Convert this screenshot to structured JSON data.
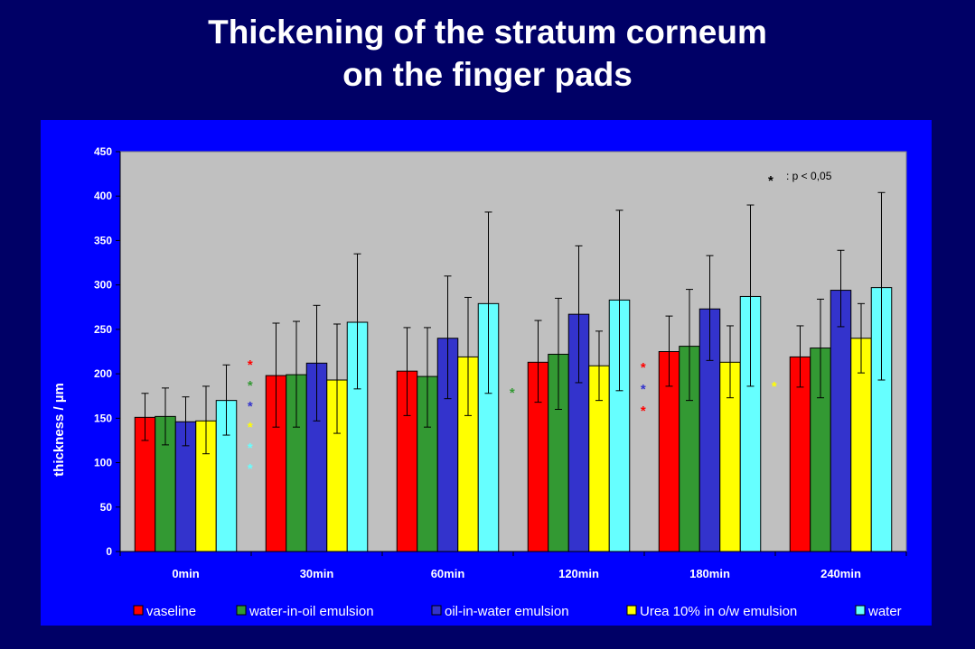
{
  "title": {
    "line1": "Thickening of the stratum corneum",
    "line2": "on the finger pads"
  },
  "colors": {
    "background": "#000066",
    "panel": "#0000ff",
    "plot_area": "#c0c0c0",
    "vaseline": "#ff0000",
    "water_in_oil": "#339933",
    "oil_in_water": "#3333cc",
    "urea": "#ffff00",
    "water": "#66ffff"
  },
  "chart_data": {
    "type": "bar",
    "ylabel": "thickness / µm",
    "xlabel": "",
    "ylim": [
      0,
      450
    ],
    "yticks": [
      0,
      50,
      100,
      150,
      200,
      250,
      300,
      350,
      400,
      450
    ],
    "grid": false,
    "legend_position": "bottom",
    "categories": [
      "0min",
      "30min",
      "60min",
      "120min",
      "180min",
      "240min"
    ],
    "series": [
      {
        "name": "vaseline",
        "color": "#ff0000",
        "values": [
          151,
          198,
          203,
          213,
          225,
          219
        ],
        "err_low": [
          125,
          140,
          153,
          168,
          186,
          185
        ],
        "err_high": [
          178,
          257,
          252,
          260,
          265,
          254
        ]
      },
      {
        "name": "water-in-oil emulsion",
        "color": "#339933",
        "values": [
          152,
          199,
          197,
          222,
          231,
          229
        ],
        "err_low": [
          120,
          140,
          140,
          160,
          170,
          173
        ],
        "err_high": [
          184,
          259,
          252,
          285,
          295,
          284
        ]
      },
      {
        "name": "oil-in-water emulsion",
        "color": "#3333cc",
        "values": [
          146,
          212,
          240,
          267,
          273,
          294
        ],
        "err_low": [
          119,
          147,
          172,
          190,
          215,
          253
        ],
        "err_high": [
          174,
          277,
          310,
          344,
          333,
          339
        ]
      },
      {
        "name": "Urea 10% in o/w emulsion",
        "color": "#ffff00",
        "values": [
          147,
          193,
          219,
          209,
          213,
          240
        ],
        "err_low": [
          110,
          133,
          153,
          170,
          173,
          201
        ],
        "err_high": [
          186,
          256,
          286,
          248,
          254,
          279
        ]
      },
      {
        "name": "water",
        "color": "#66ffff",
        "values": [
          170,
          258,
          279,
          283,
          287,
          297
        ],
        "err_low": [
          131,
          183,
          178,
          181,
          186,
          193
        ],
        "err_high": [
          210,
          335,
          382,
          384,
          390,
          404
        ]
      }
    ],
    "significance_note": {
      "symbol": "*",
      "text": ": p < 0,05"
    },
    "significance_markers": [
      {
        "after_category": "0min",
        "symbols": [
          "*",
          "*",
          "*",
          "*",
          "*",
          "*"
        ],
        "colors": [
          "#ff0000",
          "#339933",
          "#3333cc",
          "#ffff00",
          "#66ffff",
          "#66ffff"
        ]
      },
      {
        "after_category": "60min",
        "symbols": [
          "*"
        ],
        "colors": [
          "#339933"
        ]
      },
      {
        "after_category": "120min",
        "symbols": [
          "*",
          "*",
          "*"
        ],
        "colors": [
          "#ff0000",
          "#3333cc",
          "#ff0000"
        ]
      },
      {
        "after_category": "180min",
        "symbols": [
          "*"
        ],
        "colors": [
          "#ffff00"
        ]
      }
    ]
  }
}
